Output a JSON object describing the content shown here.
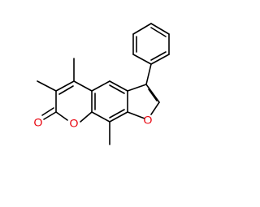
{
  "atoms": [
    {
      "label": "O"
    },
    {
      "label": "O"
    },
    {
      "label": "O"
    }
  ]
}
